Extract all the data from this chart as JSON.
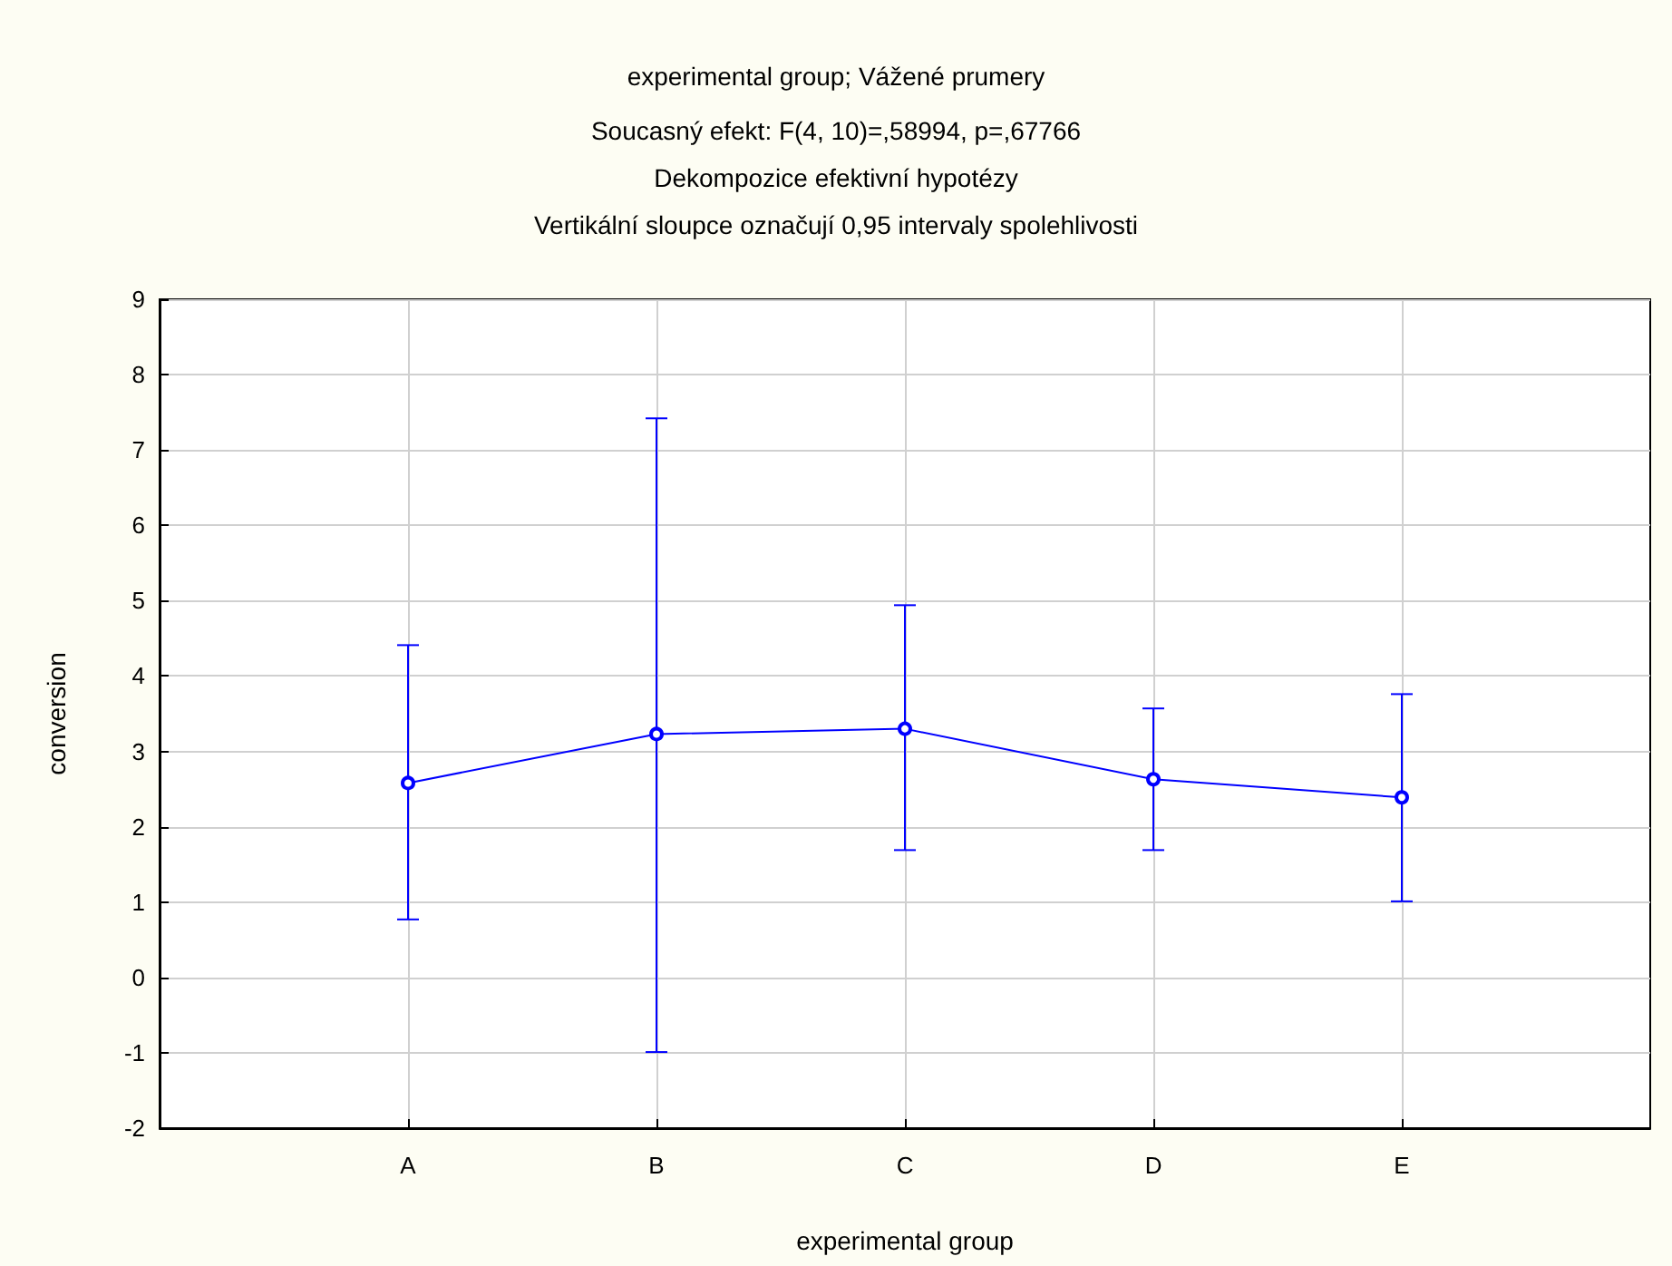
{
  "chart_data": {
    "type": "line",
    "title": "experimental group; Vážené prumery",
    "subtitle": "Soucasný efekt: F(4, 10)=,58994, p=,67766\nDekompozice efektivní hypotézy\nVertikální sloupce označují 0,95 intervaly spolehlivosti",
    "xlabel": "experimental group",
    "ylabel": "conversion",
    "categories": [
      "A",
      "B",
      "C",
      "D",
      "E"
    ],
    "series": [
      {
        "color": "#0000ff",
        "values": [
          2.58,
          3.23,
          3.3,
          2.63,
          2.39
        ],
        "errors": [
          [
            0.77,
            4.41
          ],
          [
            -0.99,
            7.42
          ],
          [
            1.69,
            4.94
          ],
          [
            1.69,
            3.57
          ],
          [
            1.01,
            3.76
          ]
        ]
      }
    ],
    "ylim": [
      -2,
      9
    ],
    "yticks": [
      -2,
      -1,
      0,
      1,
      2,
      3,
      4,
      5,
      6,
      7,
      8,
      9
    ],
    "grid": true,
    "marker": "circle",
    "line_style": "solid"
  }
}
